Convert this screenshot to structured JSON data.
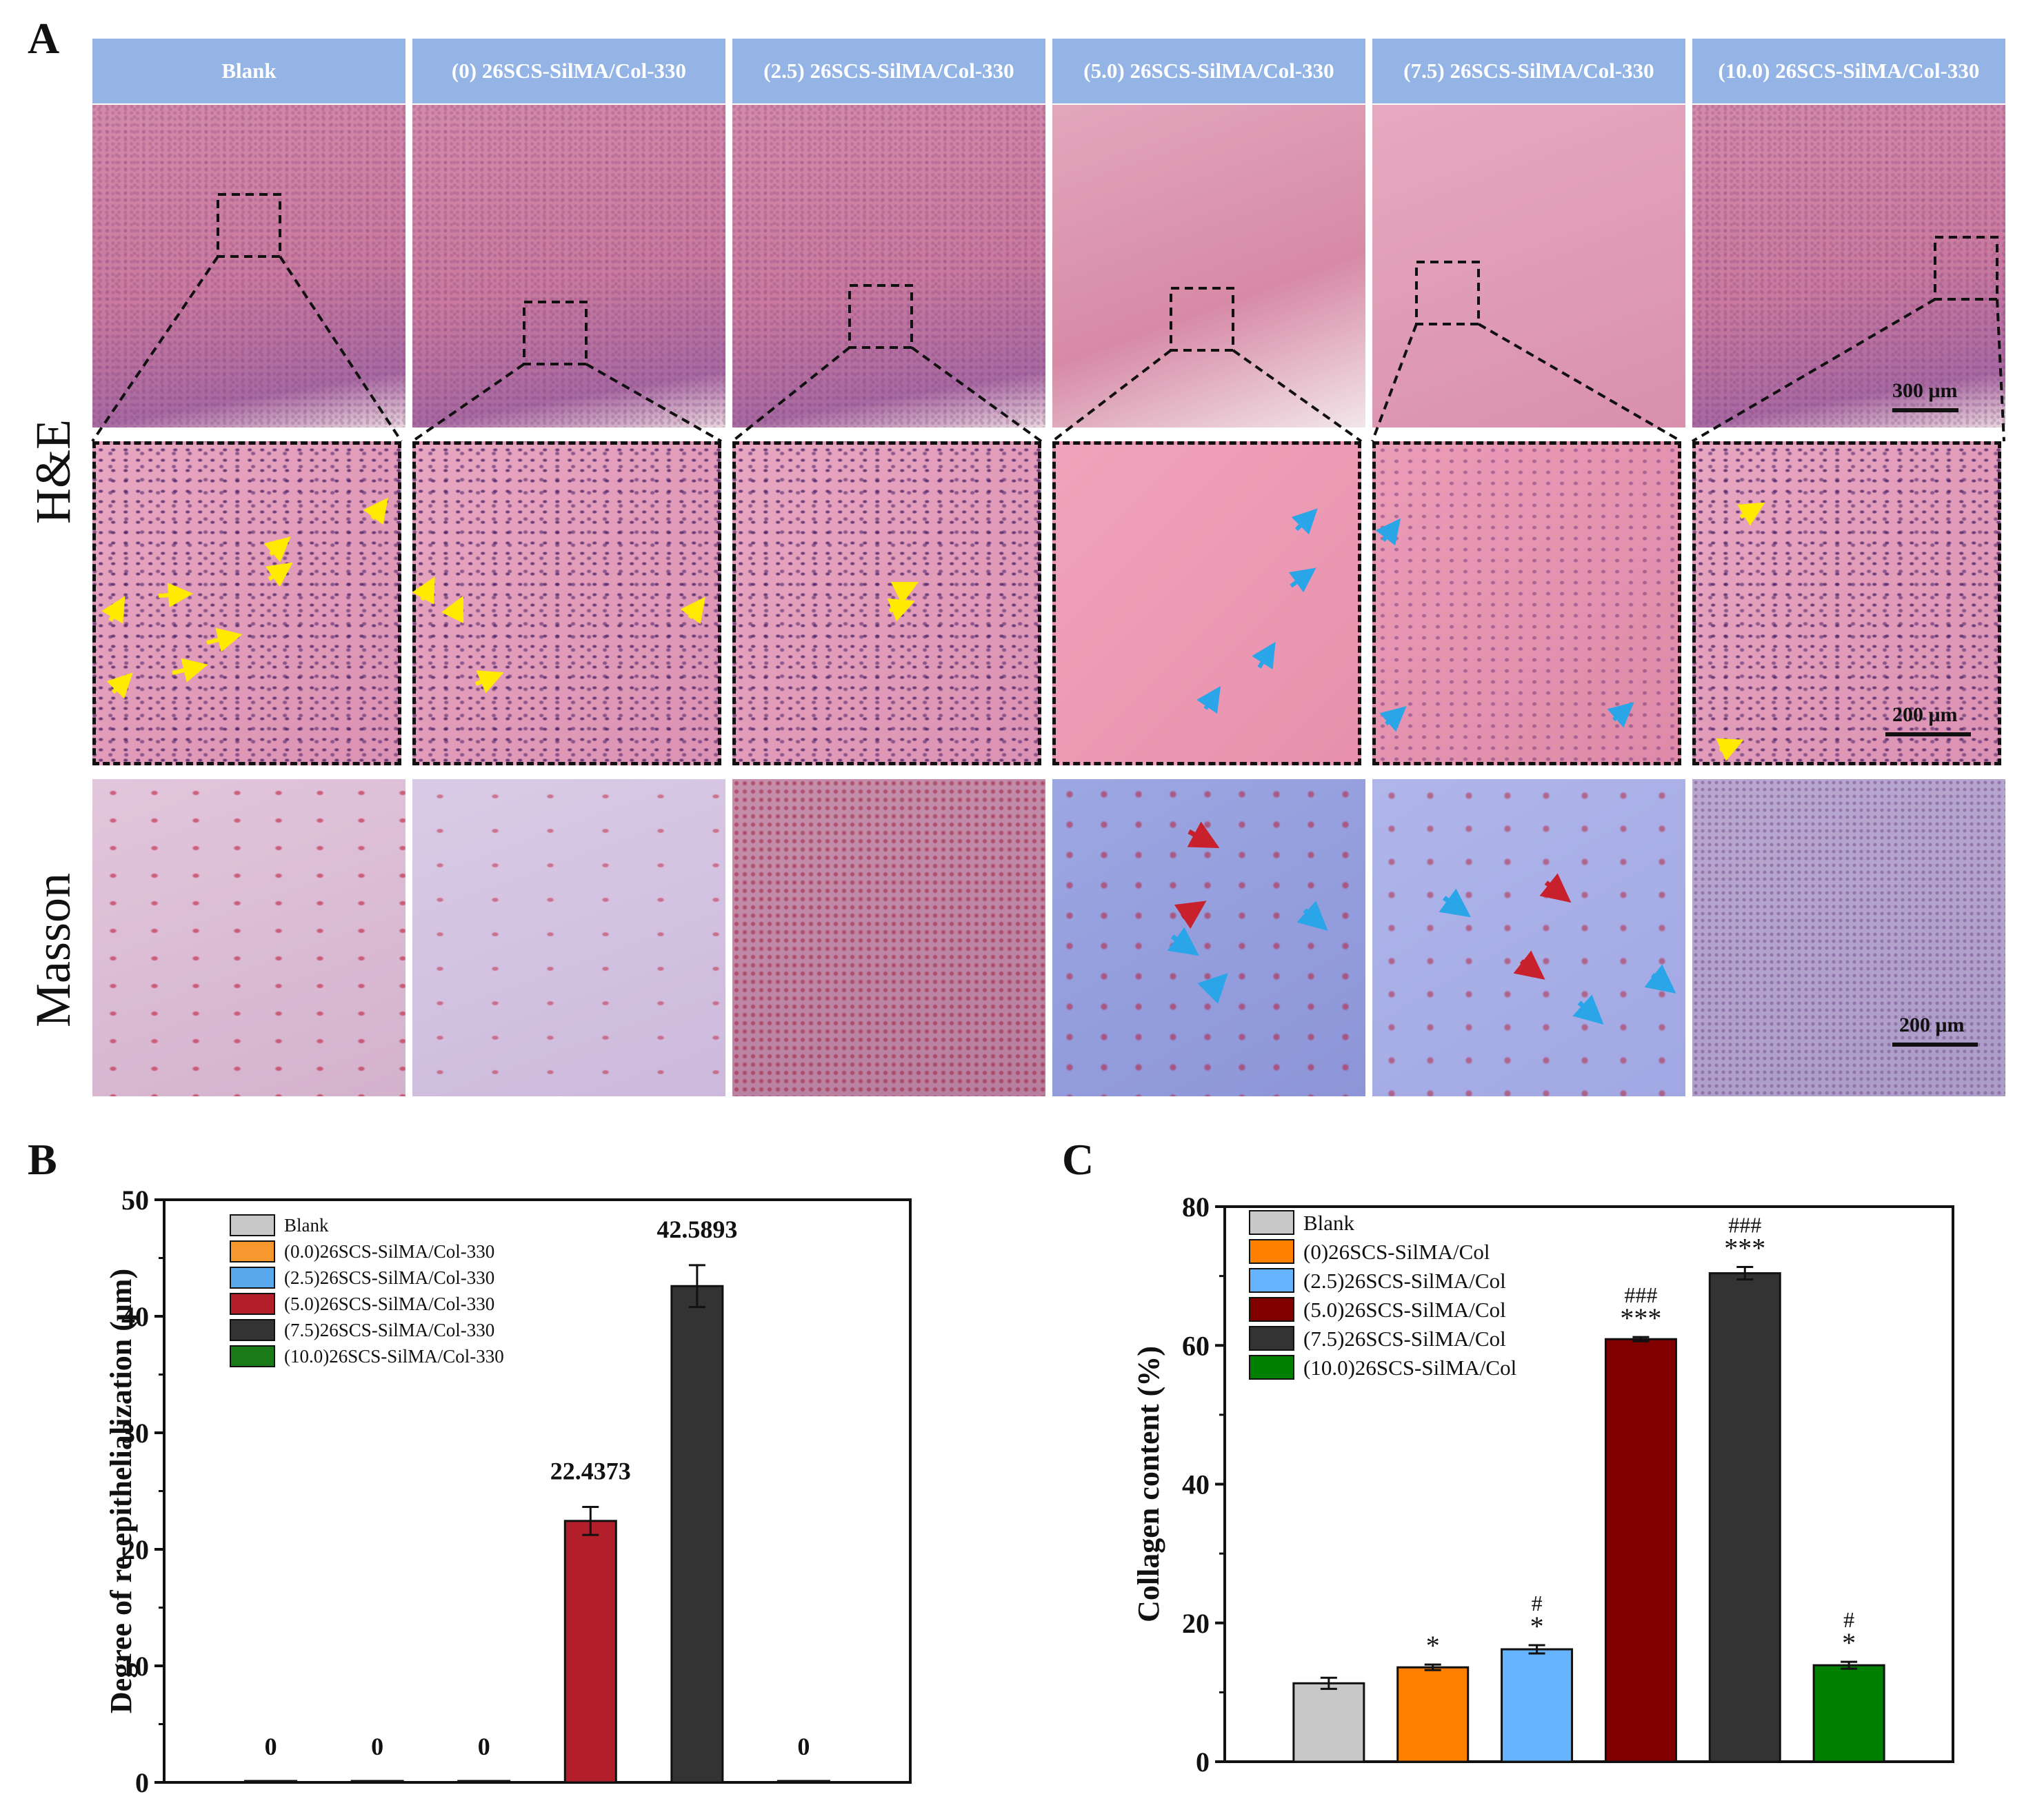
{
  "panel_a": {
    "letter": "A",
    "columns": [
      "Blank",
      "(0) 26SCS-SilMA/Col-330",
      "(2.5) 26SCS-SilMA/Col-330",
      "(5.0) 26SCS-SilMA/Col-330",
      "(7.5) 26SCS-SilMA/Col-330",
      "(10.0) 26SCS-SilMA/Col-330"
    ],
    "row_labels": {
      "he": "H&E",
      "masson": "Masson"
    },
    "scale_bars": {
      "he_low": "300 μm",
      "he_high": "200 μm",
      "masson": "200 μm"
    }
  },
  "chart_data": [
    {
      "panel": "B",
      "type": "bar",
      "ylabel": "Degree of re-epithelialization  (μm)",
      "ylim": [
        0,
        50
      ],
      "yticks": [
        0,
        10,
        20,
        30,
        40,
        50
      ],
      "legend_position": "top-left",
      "legend": [
        "Blank",
        "(0.0)26SCS-SilMA/Col-330",
        "(2.5)26SCS-SilMA/Col-330",
        "(5.0)26SCS-SilMA/Col-330",
        "(7.5)26SCS-SilMA/Col-330",
        "(10.0)26SCS-SilMA/Col-330"
      ],
      "colors": [
        "#c8c8c8",
        "#f7982e",
        "#5aa9ec",
        "#b21f2b",
        "#333333",
        "#1a7a17"
      ],
      "values": [
        0,
        0,
        0,
        22.4373,
        42.5893,
        0
      ],
      "errors": [
        0,
        0,
        0,
        1.2,
        1.8,
        0
      ],
      "data_labels": [
        "0",
        "0",
        "0",
        "22.4373",
        "42.5893",
        "0"
      ]
    },
    {
      "panel": "C",
      "type": "bar",
      "ylabel": "Collagen content (%)",
      "ylim": [
        0,
        80
      ],
      "yticks": [
        0,
        20,
        40,
        60,
        80
      ],
      "legend_position": "top-left",
      "legend": [
        "Blank",
        "(0)26SCS-SilMA/Col",
        "(2.5)26SCS-SilMA/Col",
        "(5.0)26SCS-SilMA/Col",
        "(7.5)26SCS-SilMA/Col",
        "(10.0)26SCS-SilMA/Col"
      ],
      "colors": [
        "#c8c8c8",
        "#ff8000",
        "#66b3ff",
        "#800000",
        "#333333",
        "#008000"
      ],
      "values": [
        11.3,
        13.6,
        16.2,
        60.9,
        70.4,
        13.9
      ],
      "errors": [
        0.8,
        0.4,
        0.6,
        0.3,
        0.9,
        0.5
      ],
      "sig_star": [
        "",
        "*",
        "*",
        "***",
        "***",
        "*"
      ],
      "sig_hash": [
        "",
        "",
        "#",
        "###",
        "###",
        "#"
      ]
    }
  ]
}
